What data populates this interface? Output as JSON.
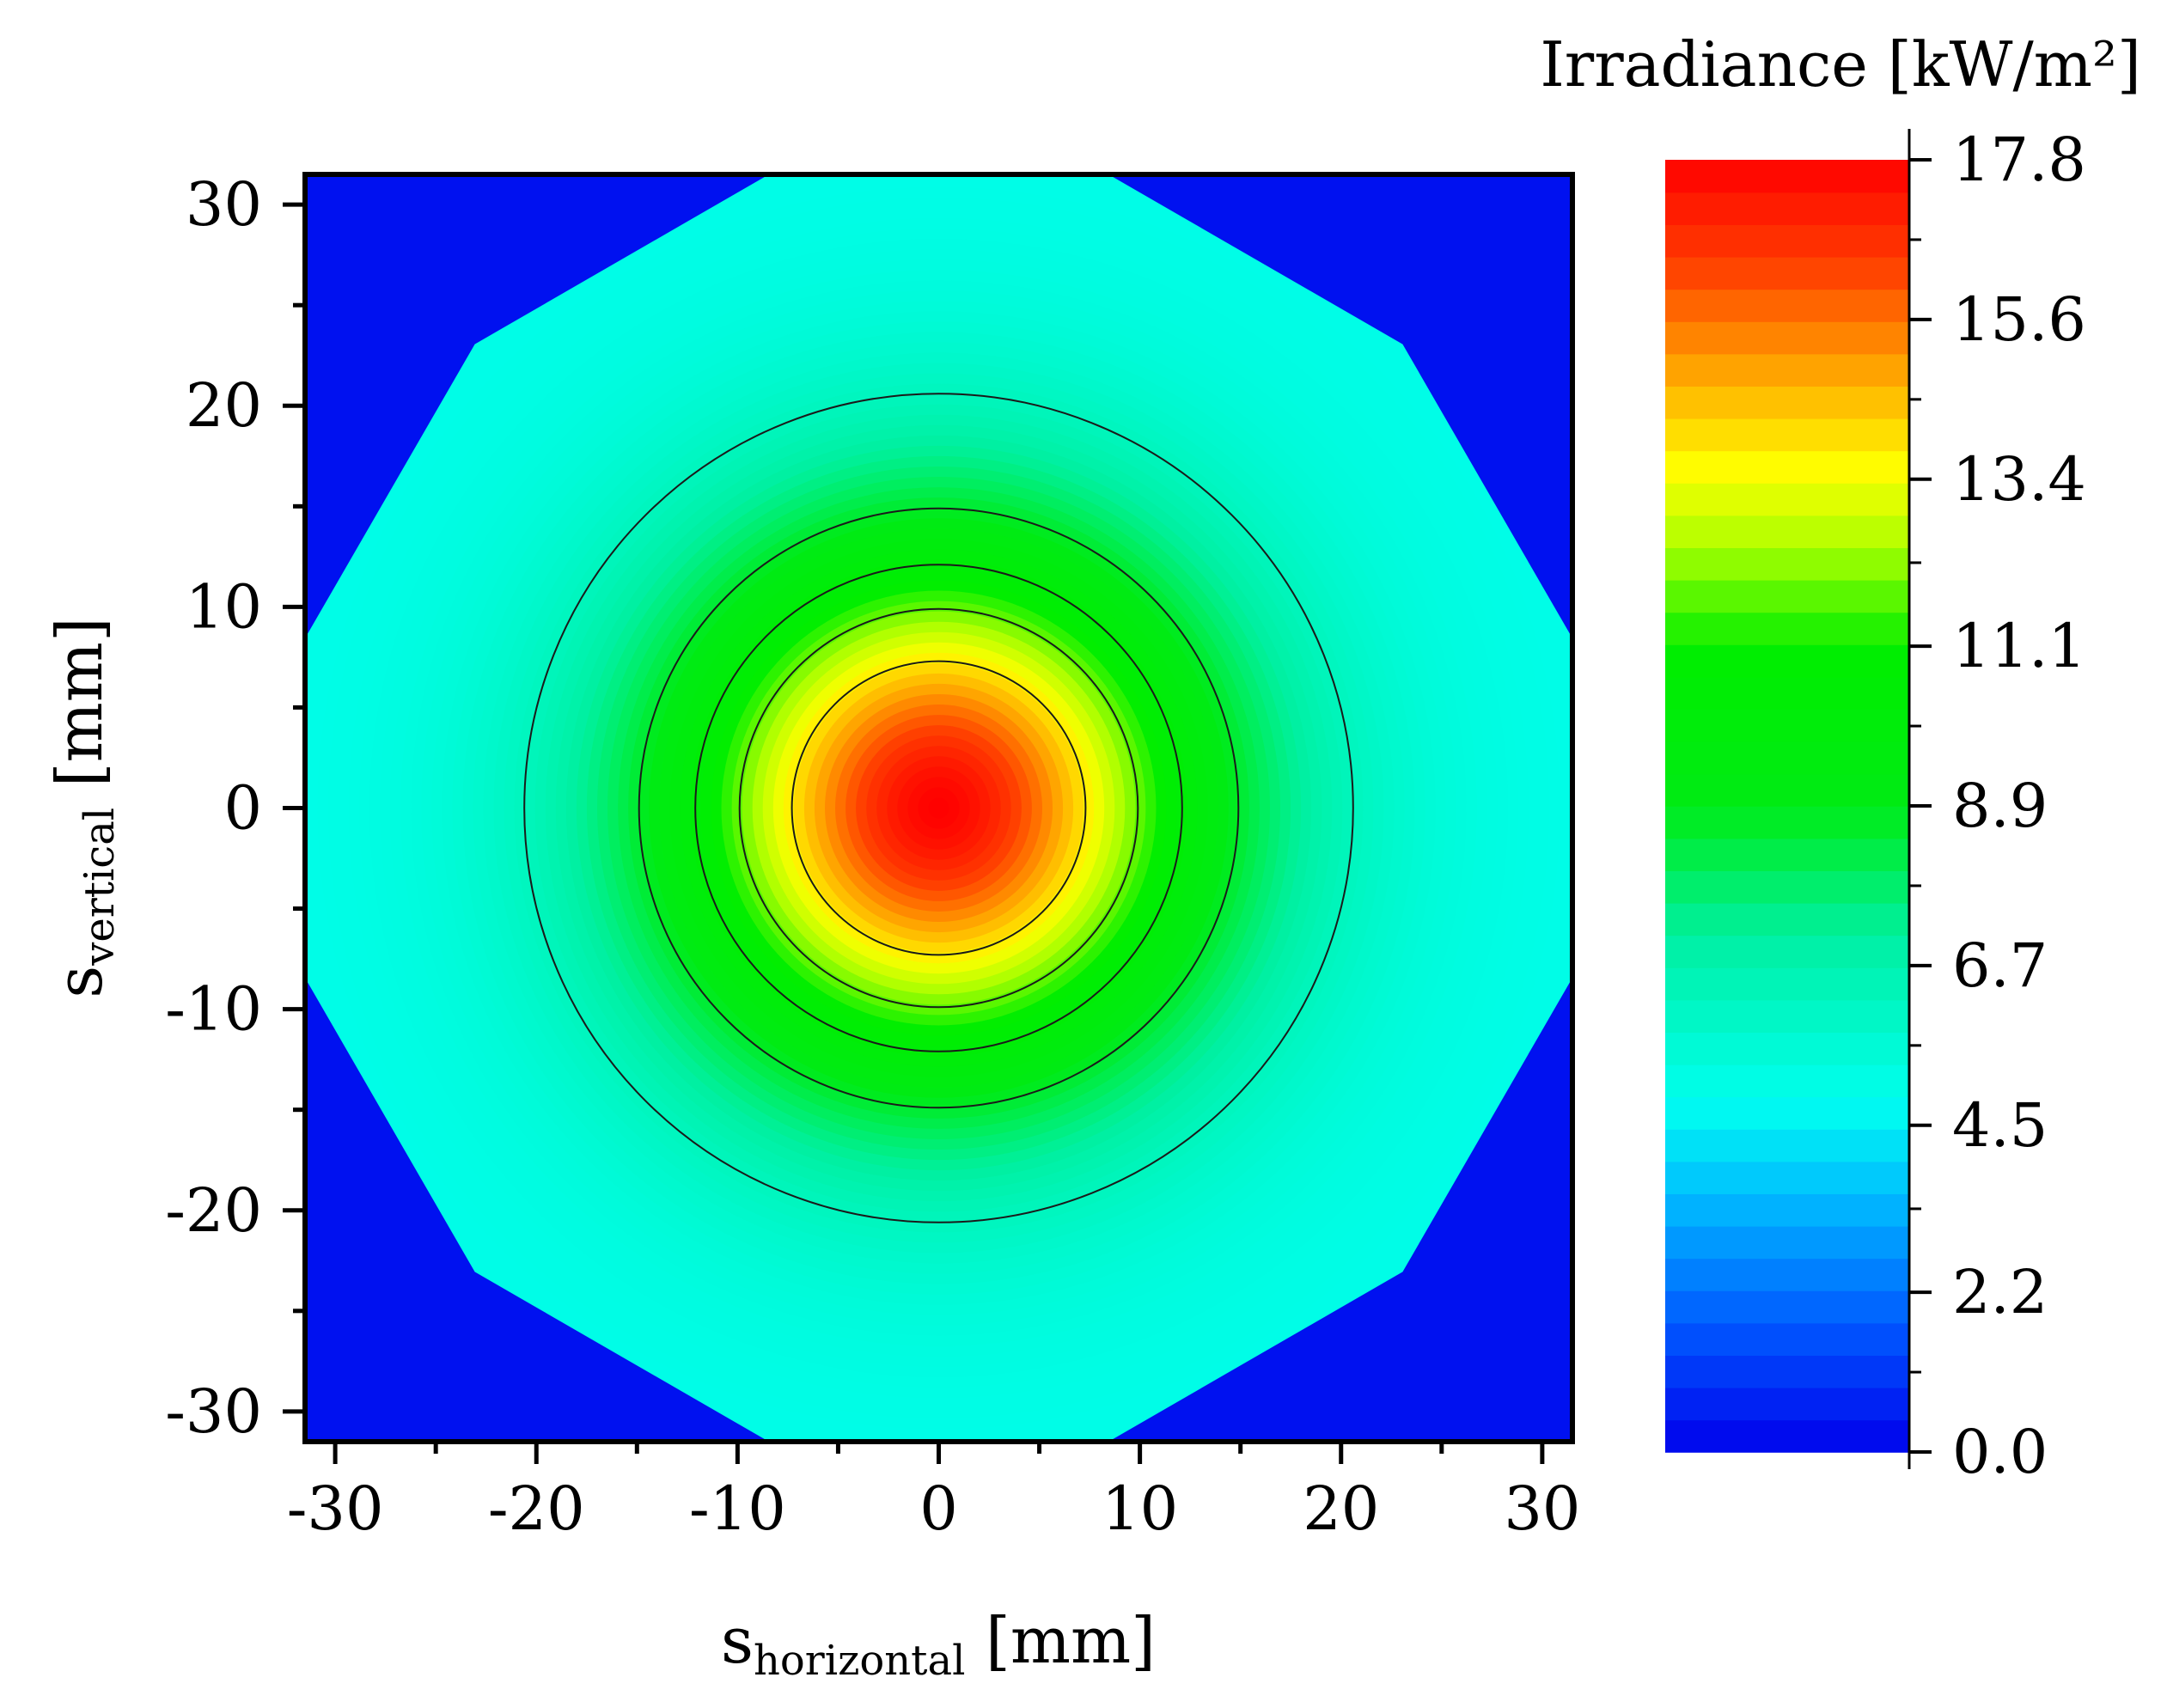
{
  "chart_data": {
    "type": "heatmap",
    "subtype": "filled-contour",
    "description_fields": {
      "x_axis_label_main": "s",
      "x_axis_label_sub": "horizontal",
      "x_axis_label_unit": " [mm]",
      "y_axis_label_main": "s",
      "y_axis_label_sub": "vertical",
      "y_axis_label_unit": " [mm]"
    },
    "xlim": [
      -31.5,
      31.5
    ],
    "ylim": [
      -31.5,
      31.5
    ],
    "xticks": [
      -30,
      -20,
      -10,
      0,
      10,
      20,
      30
    ],
    "yticks": [
      -30,
      -20,
      -10,
      0,
      10,
      20,
      30
    ],
    "xtick_labels": [
      "-30",
      "-20",
      "-10",
      "0",
      "10",
      "20",
      "30"
    ],
    "ytick_labels": [
      "-30",
      "-20",
      "-10",
      "0",
      "10",
      "20",
      "30"
    ],
    "minor_tick_step": 5,
    "colorbar": {
      "title": "Irradiance [kW/m²]",
      "range": [
        0.0,
        17.8
      ],
      "ticks": [
        0.0,
        2.2,
        4.5,
        6.7,
        8.9,
        11.1,
        13.4,
        15.6,
        17.8
      ],
      "tick_labels": [
        "0.0",
        "2.2",
        "4.5",
        "6.7",
        "8.9",
        "11.1",
        "13.4",
        "15.6",
        "17.8"
      ],
      "levels": 40
    },
    "field": {
      "shape": "dodecagon",
      "center": [
        0,
        0
      ],
      "apothem_mm": 31.5,
      "outside_value": 0.0,
      "peak_value": 17.8,
      "edge_value": 5.0,
      "contour_radii_mm": [
        7.3,
        9.9,
        12.1,
        14.9,
        20.6
      ]
    }
  }
}
